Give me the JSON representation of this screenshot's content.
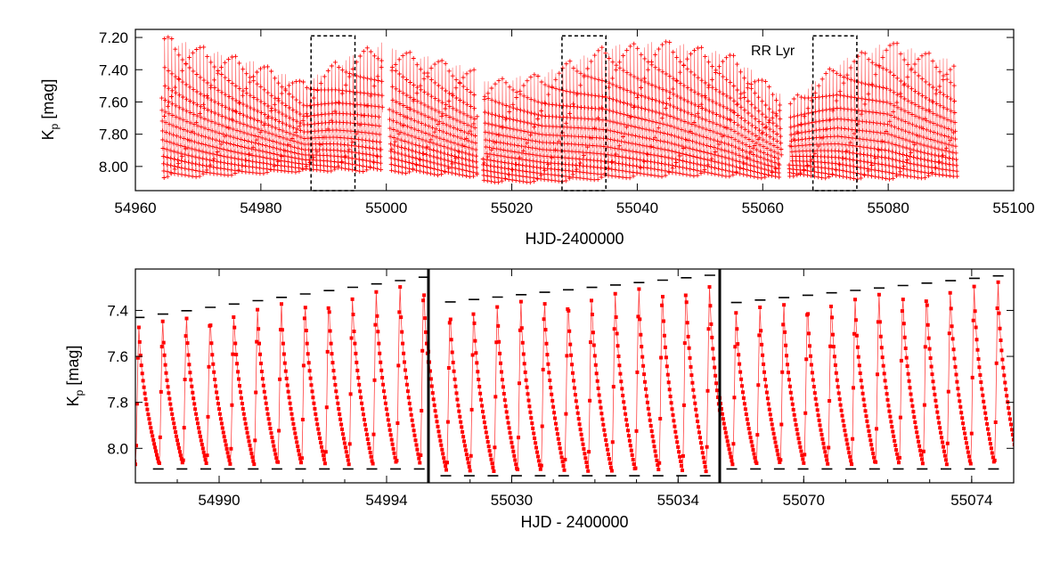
{
  "chart_data": [
    {
      "type": "scatter",
      "id": "top",
      "xlabel": "HJD-2400000",
      "ylabel_main": "K",
      "ylabel_sub": "p",
      "ylabel_unit": "[mag]",
      "annotation": "RR Lyr",
      "xlim": [
        54960,
        55100
      ],
      "ylim": [
        8.15,
        7.15
      ],
      "y_inverted": true,
      "xticks": [
        54960,
        54980,
        55000,
        55020,
        55040,
        55060,
        55080,
        55100
      ],
      "xtick_labels": [
        "54960",
        "54980",
        "55000",
        "55020",
        "55040",
        "55060",
        "55080",
        "55100"
      ],
      "yticks": [
        7.2,
        7.4,
        7.6,
        7.8,
        8.0
      ],
      "ytick_labels": [
        "7.20",
        "7.40",
        "7.60",
        "7.80",
        "8.00"
      ],
      "marker": "plus",
      "color": "#ff0000",
      "pulsation_period_days": 0.5668,
      "segments": [
        {
          "x": [
            54964.2,
            54999.4
          ],
          "max_env_x": [
            54964.2,
            54970,
            54980,
            54987,
            54992,
            54999.4
          ],
          "max_env_y": [
            7.18,
            7.25,
            7.36,
            7.48,
            7.35,
            7.22
          ],
          "min_env_y": 8.05
        },
        {
          "x": [
            55000.5,
            55014.5
          ],
          "max_env_x": [
            55000.5,
            55008,
            55014.5
          ],
          "max_env_y": [
            7.26,
            7.33,
            7.4
          ],
          "min_env_y": 8.05
        },
        {
          "x": [
            55015.4,
            55063.0
          ],
          "max_env_x": [
            55015.4,
            55025,
            55035,
            55045,
            55055,
            55063.0
          ],
          "max_env_y": [
            7.47,
            7.42,
            7.25,
            7.22,
            7.3,
            7.55
          ],
          "min_env_y": 8.08
        },
        {
          "x": [
            55064.2,
            55091.0
          ],
          "max_env_x": [
            55064.2,
            55072,
            55080,
            55091.0
          ],
          "max_env_y": [
            7.6,
            7.35,
            7.22,
            7.35
          ],
          "min_env_y": 8.06
        }
      ],
      "zoom_boxes": [
        {
          "x": [
            54988,
            54995
          ],
          "y": [
            7.19,
            8.15
          ]
        },
        {
          "x": [
            55028,
            55035
          ],
          "y": [
            7.19,
            8.15
          ]
        },
        {
          "x": [
            55068,
            55075
          ],
          "y": [
            7.19,
            8.15
          ]
        }
      ]
    },
    {
      "type": "line",
      "id": "bottom",
      "xlabel": "HJD - 2400000",
      "ylabel_main": "K",
      "ylabel_sub": "p",
      "ylabel_unit": "[mag]",
      "ylim": [
        8.15,
        7.22
      ],
      "y_inverted": true,
      "yticks": [
        7.4,
        7.6,
        7.8,
        8.0
      ],
      "ytick_labels": [
        "7.4",
        "7.6",
        "7.8",
        "8.0"
      ],
      "marker": "square",
      "color": "#ff0000",
      "pulsation_period_days": 0.5668,
      "panels": [
        {
          "xlim": [
            54988.0,
            54995.0
          ],
          "xticks": [
            54990,
            54994
          ],
          "xtick_labels": [
            "54990",
            "54994"
          ],
          "max_env_x": [
            54988.0,
            54995.0
          ],
          "max_env_y": [
            7.46,
            7.28
          ],
          "min_env_y": 8.07
        },
        {
          "xlim": [
            55028.0,
            55035.0
          ],
          "xticks": [
            55030,
            55034
          ],
          "xtick_labels": [
            "55030",
            "55034"
          ],
          "max_env_x": [
            55028.0,
            55035.0
          ],
          "max_env_y": [
            7.4,
            7.27
          ],
          "min_env_y": 8.1
        },
        {
          "xlim": [
            55068.0,
            55075.0
          ],
          "xticks": [
            55070,
            55074
          ],
          "xtick_labels": [
            "55070",
            "55074"
          ],
          "max_env_x": [
            55068.0,
            55075.0
          ],
          "max_env_y": [
            7.4,
            7.27
          ],
          "min_env_y": 8.07
        }
      ]
    }
  ]
}
